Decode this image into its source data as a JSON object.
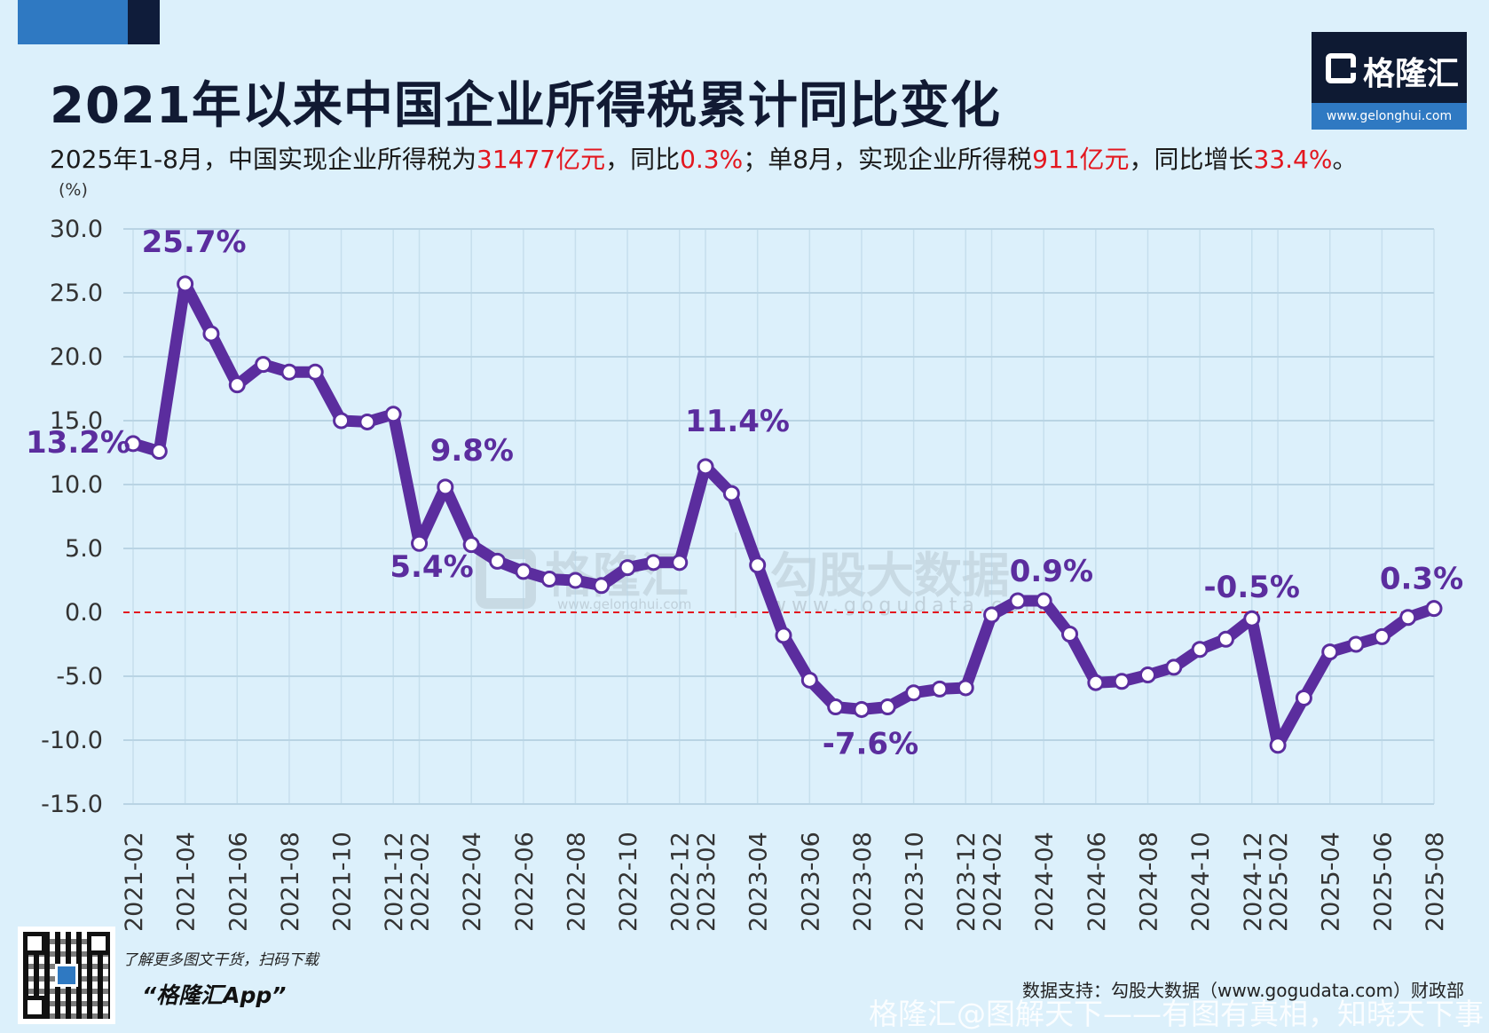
{
  "header": {
    "title": "2021年以来中国企业所得税累计同比变化",
    "subtitle_parts": [
      {
        "text": "2025年1-8月，中国实现企业所得税为",
        "highlight": false
      },
      {
        "text": "31477亿元",
        "highlight": true
      },
      {
        "text": "，同比",
        "highlight": false
      },
      {
        "text": "0.3%",
        "highlight": true
      },
      {
        "text": "；单8月，实现企业所得税",
        "highlight": false
      },
      {
        "text": "911亿元",
        "highlight": true
      },
      {
        "text": "，同比增长",
        "highlight": false
      },
      {
        "text": "33.4%",
        "highlight": true
      },
      {
        "text": "。",
        "highlight": false
      }
    ]
  },
  "logo": {
    "brand": "格隆汇",
    "url": "www.gelonghui.com"
  },
  "watermarks": {
    "center_left": "格隆汇",
    "center_left_url": "www.gelonghui.com",
    "center_right": "勾股大数据",
    "center_right_url": "www.gogudata.com",
    "footer": "格隆汇@图解天下——有图有真相，知晓天下事"
  },
  "footer": {
    "promo_line1": "了解更多图文干货，扫码下载",
    "promo_line2": "“格隆汇App”",
    "source": "数据支持：勾股大数据（www.gogudata.com）财政部"
  },
  "colors": {
    "line": "#5b2d9e",
    "marker_fill": "#ffffff",
    "zero_line": "#e3171f",
    "grid": "#b9d4e4",
    "highlight": "#e3171f"
  },
  "chart_data": {
    "type": "line",
    "unit_label": "(%)",
    "ylim": [
      -15,
      30
    ],
    "yticks": [
      30,
      25,
      20,
      15,
      10,
      5,
      0,
      -5,
      -10,
      -15
    ],
    "ytick_labels": [
      "30.0",
      "25.0",
      "20.0",
      "15.0",
      "10.0",
      "5.0",
      "0.0",
      "-5.0",
      "-10.0",
      "-15.0"
    ],
    "grid": true,
    "reference_line": 0,
    "x": [
      "2021-02",
      "2021-03",
      "2021-04",
      "2021-05",
      "2021-06",
      "2021-07",
      "2021-08",
      "2021-09",
      "2021-10",
      "2021-11",
      "2021-12",
      "2022-02",
      "2022-03",
      "2022-04",
      "2022-05",
      "2022-06",
      "2022-07",
      "2022-08",
      "2022-09",
      "2022-10",
      "2022-11",
      "2022-12",
      "2023-02",
      "2023-03",
      "2023-04",
      "2023-05",
      "2023-06",
      "2023-07",
      "2023-08",
      "2023-09",
      "2023-10",
      "2023-11",
      "2023-12",
      "2024-02",
      "2024-03",
      "2024-04",
      "2024-05",
      "2024-06",
      "2024-07",
      "2024-08",
      "2024-09",
      "2024-10",
      "2024-11",
      "2024-12",
      "2025-02",
      "2025-03",
      "2025-04",
      "2025-05",
      "2025-06",
      "2025-07",
      "2025-08"
    ],
    "xtick_labels": [
      "2021-02",
      "2021-04",
      "2021-06",
      "2021-08",
      "2021-10",
      "2021-12",
      "2022-02",
      "2022-04",
      "2022-06",
      "2022-08",
      "2022-10",
      "2022-12",
      "2023-02",
      "2023-04",
      "2023-06",
      "2023-08",
      "2023-10",
      "2023-12",
      "2024-02",
      "2024-04",
      "2024-06",
      "2024-08",
      "2024-10",
      "2024-12",
      "2025-02",
      "2025-04",
      "2025-06",
      "2025-08"
    ],
    "series": [
      {
        "values": [
          13.2,
          12.6,
          25.7,
          21.8,
          17.8,
          19.4,
          18.8,
          18.8,
          15.0,
          14.9,
          15.5,
          5.4,
          9.8,
          5.3,
          4.0,
          3.2,
          2.6,
          2.5,
          2.1,
          3.5,
          3.9,
          3.9,
          11.4,
          9.3,
          3.7,
          -1.8,
          -5.3,
          -7.4,
          -7.6,
          -7.4,
          -6.3,
          -6.0,
          -5.9,
          -0.2,
          0.9,
          0.9,
          -1.7,
          -5.5,
          -5.4,
          -4.9,
          -4.3,
          -2.9,
          -2.1,
          -0.5,
          -10.4,
          -6.7,
          -3.1,
          -2.5,
          -1.9,
          -0.4,
          0.3
        ]
      }
    ],
    "annotations": [
      {
        "x": "2021-02",
        "label": "13.2%"
      },
      {
        "x": "2021-04",
        "label": "25.7%"
      },
      {
        "x": "2022-02",
        "label": "5.4%"
      },
      {
        "x": "2022-03",
        "label": "9.8%"
      },
      {
        "x": "2023-02",
        "label": "11.4%"
      },
      {
        "x": "2023-08",
        "label": "-7.6%"
      },
      {
        "x": "2024-03",
        "label": "0.9%"
      },
      {
        "x": "2024-12",
        "label": "-0.5%"
      },
      {
        "x": "2025-08",
        "label": "0.3%"
      }
    ]
  }
}
